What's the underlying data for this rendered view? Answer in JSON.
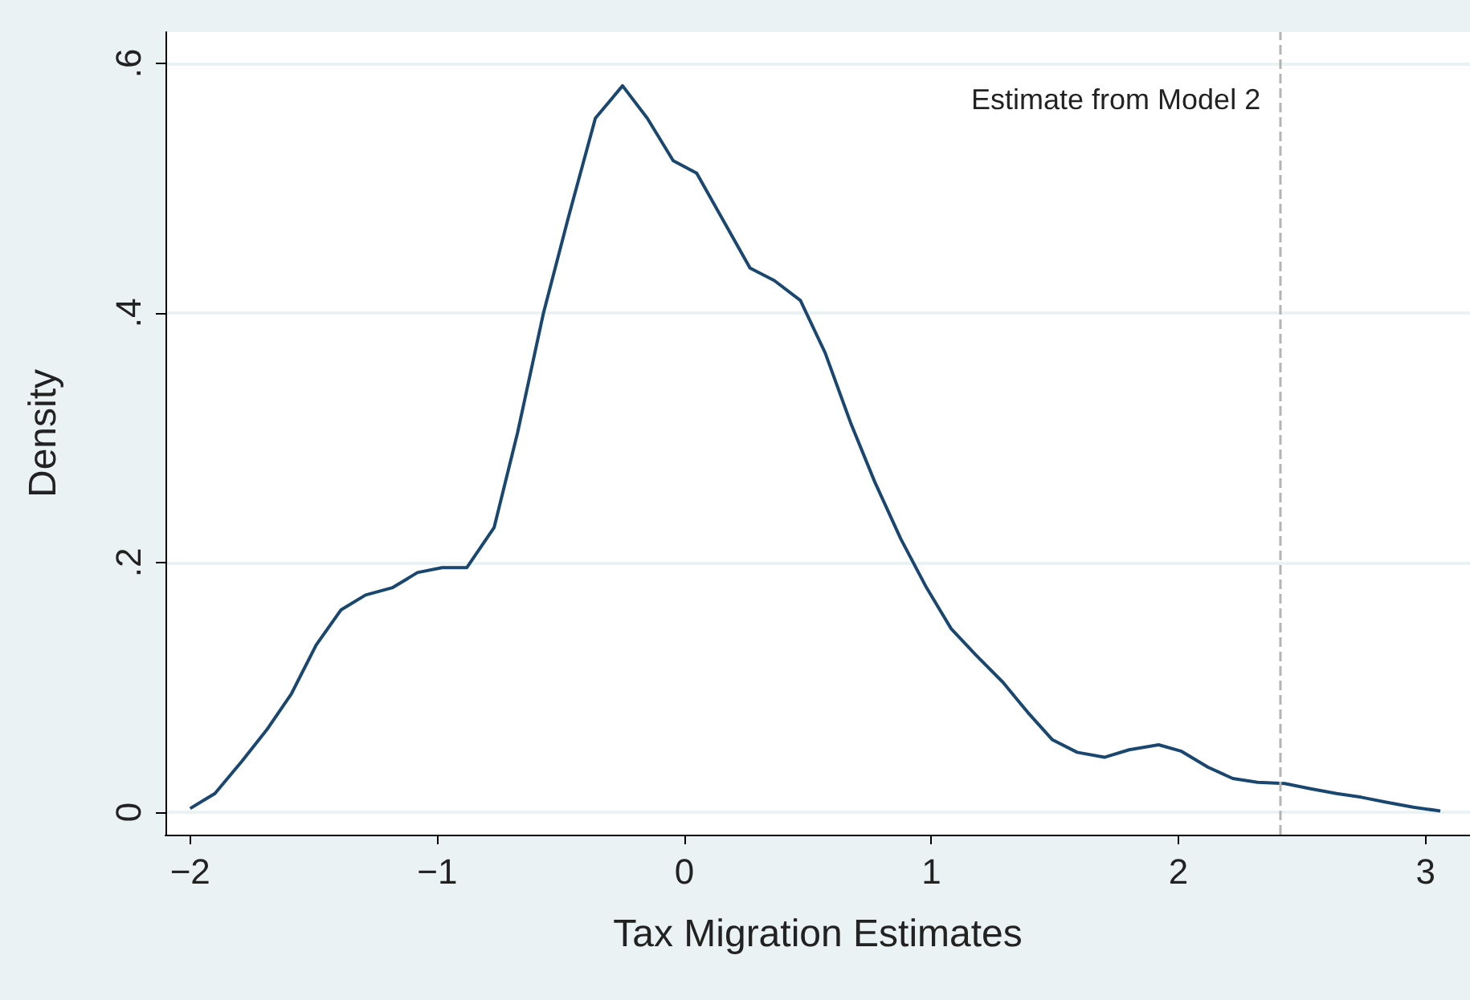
{
  "chart_data": {
    "type": "line",
    "xlabel": "Tax Migration Estimates",
    "ylabel": "Density",
    "x": [
      -2,
      -1.9,
      -1.79,
      -1.69,
      -1.59,
      -1.49,
      -1.39,
      -1.29,
      -1.18,
      -1.08,
      -0.98,
      -0.88,
      -0.77,
      -0.675,
      -0.57,
      -0.47,
      -0.36,
      -0.25,
      -0.15,
      -0.045,
      0.05,
      0.155,
      0.266,
      0.364,
      0.47,
      0.57,
      0.675,
      0.77,
      0.876,
      0.98,
      1.08,
      1.18,
      1.29,
      1.39,
      1.49,
      1.59,
      1.7,
      1.8,
      1.92,
      2.01,
      2.12,
      2.22,
      2.32,
      2.43,
      2.53,
      2.64,
      2.74,
      2.84,
      2.95,
      3.06
    ],
    "series": [
      {
        "color": "#1a476f",
        "values": [
          0.003,
          0.015,
          0.041,
          0.066,
          0.095,
          0.134,
          0.162,
          0.174,
          0.18,
          0.192,
          0.196,
          0.196,
          0.228,
          0.304,
          0.4,
          0.476,
          0.556,
          0.582,
          0.556,
          0.522,
          0.512,
          0.475,
          0.436,
          0.426,
          0.41,
          0.368,
          0.311,
          0.265,
          0.219,
          0.18,
          0.147,
          0.126,
          0.104,
          0.08,
          0.058,
          0.048,
          0.044,
          0.05,
          0.054,
          0.049,
          0.036,
          0.027,
          0.024,
          0.023,
          0.019,
          0.015,
          0.012,
          0.008,
          0.004,
          0.001
        ]
      }
    ],
    "xlim": [
      -2.1,
      3.18
    ],
    "ylim": [
      -0.018,
      0.625
    ],
    "xticks": [
      {
        "value": -2,
        "label": "−2"
      },
      {
        "value": -1,
        "label": "−1"
      },
      0,
      1,
      2,
      3
    ],
    "yticks": [
      0,
      {
        "value": 0.2,
        "label": ".2"
      },
      {
        "value": 0.4,
        "label": ".4"
      },
      {
        "value": 0.6,
        "label": ".6"
      }
    ],
    "grid": "y",
    "marker": "none",
    "line_style": "solid",
    "ref_lines": [
      {
        "axis": "x",
        "value": 2.41,
        "label": "Estimate from Model 2",
        "color": "#b4b4b4",
        "line_style": "dashed"
      }
    ]
  }
}
